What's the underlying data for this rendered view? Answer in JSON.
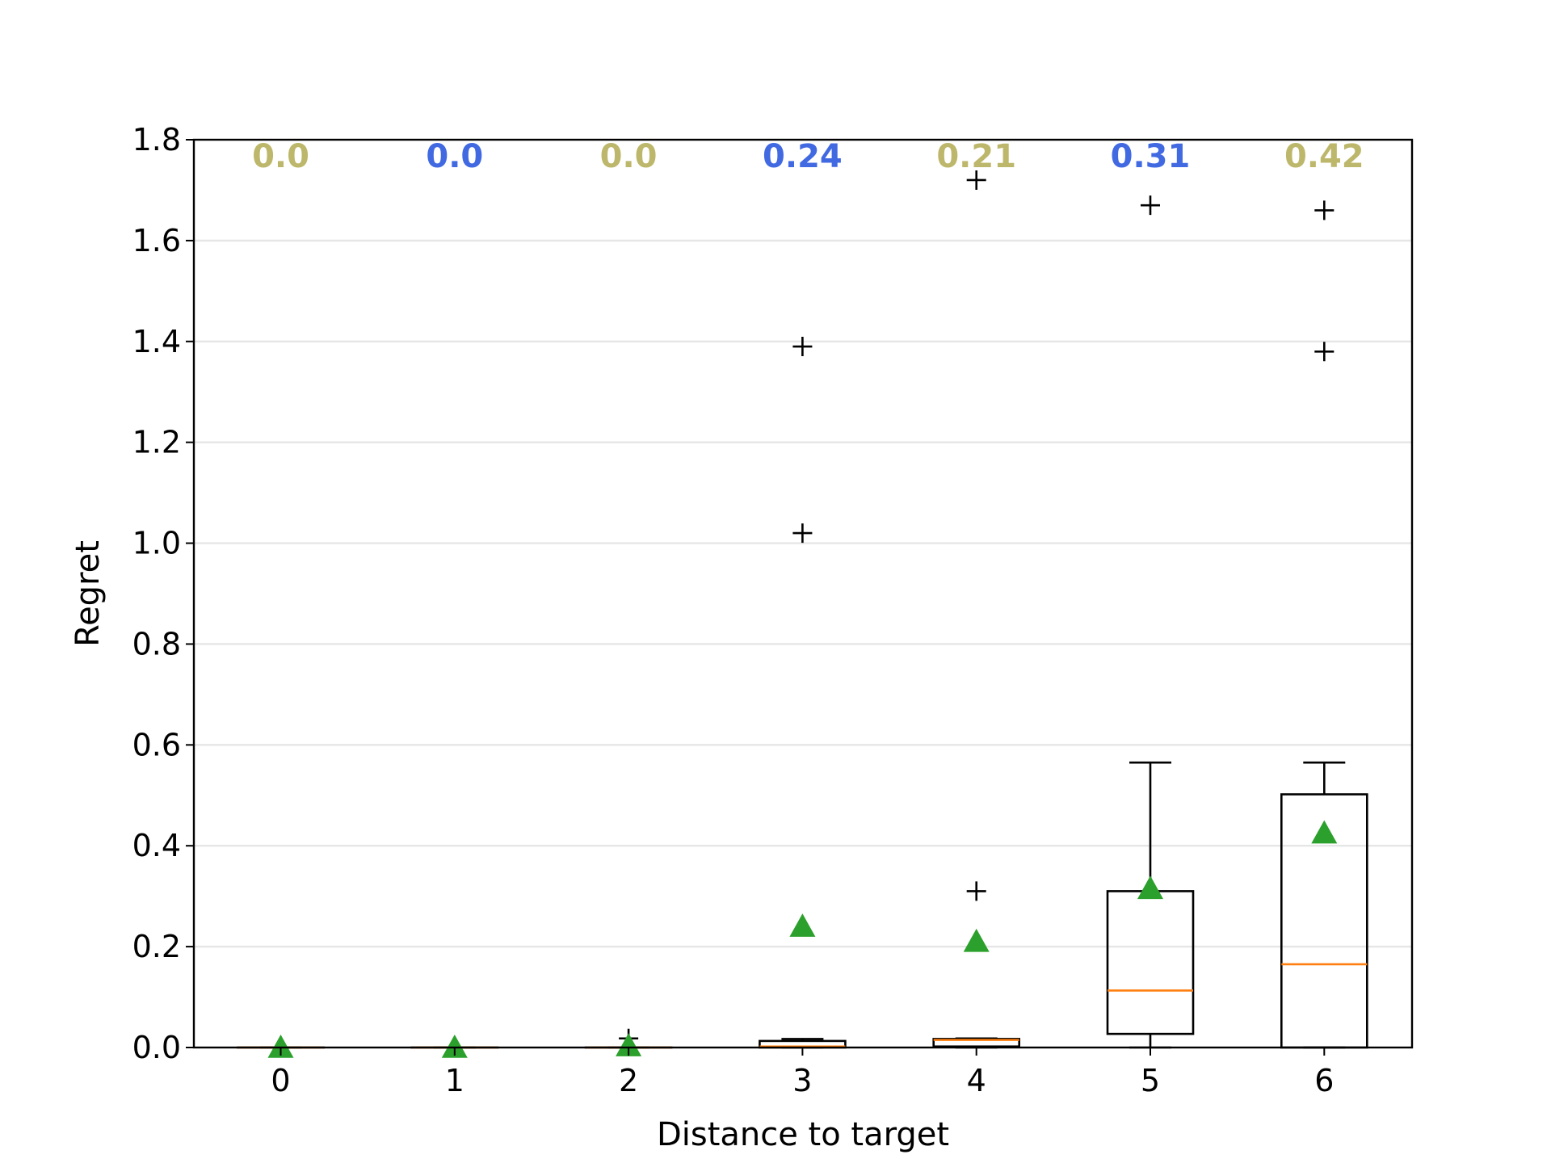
{
  "chart_data": {
    "type": "box",
    "xlabel": "Distance to target",
    "ylabel": "Regret",
    "ylim": [
      0,
      1.8
    ],
    "yticks": [
      "0.0",
      "0.2",
      "0.4",
      "0.6",
      "0.8",
      "1.0",
      "1.2",
      "1.4",
      "1.6",
      "1.8"
    ],
    "grid": "horizontal",
    "categories": [
      "0",
      "1",
      "2",
      "3",
      "4",
      "5",
      "6"
    ],
    "mean_labels": [
      "0.0",
      "0.0",
      "0.0",
      "0.24",
      "0.21",
      "0.31",
      "0.42"
    ],
    "mean_label_colors": [
      "#bdb76b",
      "#4169e1",
      "#bdb76b",
      "#4169e1",
      "#bdb76b",
      "#4169e1",
      "#bdb76b"
    ],
    "boxes": [
      {
        "q1": 0.0,
        "median": 0.0,
        "q3": 0.0,
        "whisker_low": 0.0,
        "whisker_high": 0.0,
        "mean": 0.0,
        "outliers": []
      },
      {
        "q1": 0.0,
        "median": 0.0,
        "q3": 0.0,
        "whisker_low": 0.0,
        "whisker_high": 0.0,
        "mean": 0.0,
        "outliers": []
      },
      {
        "q1": 0.0,
        "median": 0.0,
        "q3": 0.0,
        "whisker_low": 0.0,
        "whisker_high": 0.0,
        "mean": 0.003,
        "outliers": [
          0.018
        ]
      },
      {
        "q1": 0.0,
        "median": 0.002,
        "q3": 0.013,
        "whisker_low": 0.0,
        "whisker_high": 0.017,
        "mean": 0.24,
        "outliers": [
          1.02,
          1.39
        ]
      },
      {
        "q1": 0.002,
        "median": 0.015,
        "q3": 0.017,
        "whisker_low": 0.0,
        "whisker_high": 0.018,
        "mean": 0.21,
        "outliers": [
          0.31,
          1.72
        ]
      },
      {
        "q1": 0.027,
        "median": 0.113,
        "q3": 0.31,
        "whisker_low": 0.0,
        "whisker_high": 0.565,
        "mean": 0.315,
        "outliers": [
          1.67
        ]
      },
      {
        "q1": 0.0,
        "median": 0.165,
        "q3": 0.502,
        "whisker_low": 0.0,
        "whisker_high": 0.565,
        "mean": 0.425,
        "outliers": [
          1.38,
          1.66
        ]
      }
    ],
    "colors": {
      "box": "#000000",
      "median": "#ff7f0e",
      "mean": "#2ca02c",
      "grid": "#e6e6e6"
    }
  }
}
